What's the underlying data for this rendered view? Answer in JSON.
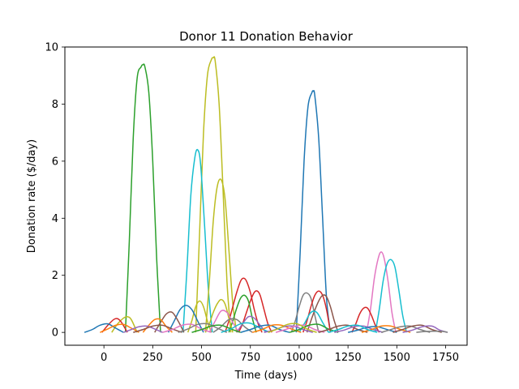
{
  "chart_data": {
    "type": "line",
    "title": "Donor 11 Donation Behavior",
    "xlabel": "Time (days)",
    "ylabel": "Donation rate ($/day)",
    "xlim": [
      -200,
      1860
    ],
    "ylim": [
      -0.45,
      10.0
    ],
    "x_ticks": [
      0,
      250,
      500,
      750,
      1000,
      1250,
      1500,
      1750
    ],
    "x_tick_labels": [
      "0",
      "250",
      "500",
      "750",
      "1000",
      "1250",
      "1500",
      "1750"
    ],
    "y_ticks": [
      0,
      2,
      4,
      6,
      8,
      10
    ],
    "y_tick_labels": [
      "0",
      "2",
      "4",
      "6",
      "8",
      "10"
    ],
    "grid": false,
    "legend": "none",
    "palette": [
      "#1f77b4",
      "#ff7f0e",
      "#2ca02c",
      "#d62728",
      "#9467bd",
      "#8c564b",
      "#e377c2",
      "#7f7f7f",
      "#bcbd22",
      "#17becf"
    ],
    "series": [
      {
        "color": "#2ca02c",
        "x": [
          110,
          130,
          150,
          170,
          190,
          200,
          210,
          230,
          250,
          270,
          290
        ],
        "y": [
          0,
          3.2,
          6.8,
          8.9,
          9.3,
          9.38,
          9.3,
          8.4,
          6.0,
          2.6,
          0
        ]
      },
      {
        "color": "#bcbd22",
        "x": [
          470,
          490,
          510,
          530,
          550,
          560,
          570,
          590,
          610,
          630,
          650
        ],
        "y": [
          0,
          3.5,
          7.0,
          9.0,
          9.55,
          9.62,
          9.5,
          8.0,
          5.0,
          1.8,
          0
        ]
      },
      {
        "color": "#1f77b4",
        "x": [
          985,
          1005,
          1025,
          1045,
          1065,
          1072,
          1080,
          1100,
          1120,
          1140,
          1160
        ],
        "y": [
          0,
          2.8,
          6.0,
          7.9,
          8.4,
          8.45,
          8.3,
          6.8,
          4.0,
          1.2,
          0
        ]
      },
      {
        "color": "#17becf",
        "x": [
          405,
          425,
          445,
          465,
          480,
          495,
          515,
          535,
          555
        ],
        "y": [
          0,
          2.2,
          4.8,
          6.1,
          6.4,
          5.9,
          3.8,
          1.5,
          0
        ]
      },
      {
        "color": "#bcbd22",
        "x": [
          520,
          540,
          560,
          580,
          600,
          620,
          640,
          660,
          680
        ],
        "y": [
          0,
          1.8,
          3.9,
          5.1,
          5.35,
          4.7,
          2.9,
          1.0,
          0
        ]
      },
      {
        "color": "#e377c2",
        "x": [
          1345,
          1365,
          1385,
          1405,
          1420,
          1435,
          1455,
          1475,
          1495
        ],
        "y": [
          0,
          0.8,
          1.9,
          2.6,
          2.82,
          2.6,
          1.8,
          0.7,
          0
        ]
      },
      {
        "color": "#17becf",
        "x": [
          1390,
          1410,
          1430,
          1450,
          1470,
          1490,
          1510,
          1530,
          1550
        ],
        "y": [
          0,
          0.8,
          1.8,
          2.4,
          2.55,
          2.3,
          1.5,
          0.6,
          0
        ]
      },
      {
        "color": "#d62728",
        "x": [
          620,
          640,
          660,
          680,
          700,
          715,
          730,
          750,
          770,
          790,
          810
        ],
        "y": [
          0,
          0.4,
          0.9,
          1.4,
          1.8,
          1.9,
          1.8,
          1.4,
          0.8,
          0.3,
          0
        ]
      },
      {
        "color": "#d62728",
        "x": [
          690,
          710,
          730,
          750,
          770,
          785,
          800,
          820,
          840,
          860
        ],
        "y": [
          0,
          0.3,
          0.7,
          1.1,
          1.4,
          1.45,
          1.3,
          0.8,
          0.3,
          0
        ]
      },
      {
        "color": "#7f7f7f",
        "x": [
          960,
          980,
          1000,
          1020,
          1040,
          1060,
          1080,
          1100
        ],
        "y": [
          0,
          0.4,
          0.9,
          1.3,
          1.38,
          1.2,
          0.6,
          0
        ]
      },
      {
        "color": "#d62728",
        "x": [
          1020,
          1040,
          1060,
          1080,
          1100,
          1120,
          1140,
          1160
        ],
        "y": [
          0,
          0.4,
          0.9,
          1.3,
          1.45,
          1.3,
          0.8,
          0
        ]
      },
      {
        "color": "#8c564b",
        "x": [
          1040,
          1070,
          1100,
          1120,
          1140,
          1160,
          1180,
          1200
        ],
        "y": [
          0,
          0.6,
          1.1,
          1.3,
          1.25,
          0.9,
          0.4,
          0
        ]
      },
      {
        "color": "#2ca02c",
        "x": [
          640,
          660,
          680,
          700,
          720,
          740,
          760,
          780
        ],
        "y": [
          0,
          0.4,
          0.85,
          1.2,
          1.3,
          1.1,
          0.5,
          0
        ]
      },
      {
        "color": "#bcbd22",
        "x": [
          520,
          540,
          560,
          580,
          600,
          620,
          640,
          660
        ],
        "y": [
          0,
          0.3,
          0.7,
          1.0,
          1.15,
          1.0,
          0.5,
          0
        ]
      },
      {
        "color": "#bcbd22",
        "x": [
          430,
          450,
          470,
          490,
          510,
          530,
          550
        ],
        "y": [
          0,
          0.4,
          0.9,
          1.1,
          0.9,
          0.4,
          0
        ]
      },
      {
        "color": "#d62728",
        "x": [
          1270,
          1290,
          1310,
          1330,
          1350,
          1370,
          1390,
          1410
        ],
        "y": [
          0,
          0.3,
          0.65,
          0.85,
          0.85,
          0.6,
          0.25,
          0
        ]
      },
      {
        "color": "#1f77b4",
        "x": [
          330,
          360,
          390,
          420,
          450,
          480,
          510
        ],
        "y": [
          0,
          0.4,
          0.8,
          0.95,
          0.8,
          0.4,
          0
        ]
      },
      {
        "color": "#e377c2",
        "x": [
          540,
          570,
          600,
          630,
          660,
          690
        ],
        "y": [
          0,
          0.4,
          0.75,
          0.7,
          0.35,
          0
        ]
      },
      {
        "color": "#17becf",
        "x": [
          1000,
          1030,
          1060,
          1090,
          1120,
          1150
        ],
        "y": [
          0,
          0.35,
          0.7,
          0.7,
          0.35,
          0
        ]
      },
      {
        "color": "#8c564b",
        "x": [
          260,
          290,
          320,
          350,
          380,
          410
        ],
        "y": [
          0,
          0.35,
          0.65,
          0.7,
          0.4,
          0
        ]
      },
      {
        "color": "#bcbd22",
        "x": [
          40,
          70,
          100,
          120,
          140,
          170
        ],
        "y": [
          0,
          0.3,
          0.5,
          0.55,
          0.45,
          0
        ]
      },
      {
        "color": "#d62728",
        "x": [
          -10,
          20,
          50,
          70,
          90,
          120
        ],
        "y": [
          0,
          0.25,
          0.45,
          0.48,
          0.35,
          0
        ]
      },
      {
        "color": "#ff7f0e",
        "x": [
          200,
          230,
          260,
          290,
          320,
          350
        ],
        "y": [
          0,
          0.25,
          0.45,
          0.45,
          0.2,
          0
        ]
      },
      {
        "color": "#9467bd",
        "x": [
          680,
          710,
          740,
          770,
          800,
          830
        ],
        "y": [
          0,
          0.3,
          0.55,
          0.5,
          0.25,
          0
        ]
      },
      {
        "color": "#7f7f7f",
        "x": [
          560,
          600,
          640,
          680,
          720,
          760
        ],
        "y": [
          0,
          0.2,
          0.45,
          0.45,
          0.2,
          0
        ]
      },
      {
        "color": "#1f77b4",
        "x": [
          -100,
          -60,
          -20,
          20,
          60,
          100
        ],
        "y": [
          0,
          0.1,
          0.25,
          0.3,
          0.15,
          0
        ]
      },
      {
        "color": "#ff7f0e",
        "x": [
          -20,
          20,
          60,
          100,
          140,
          180
        ],
        "y": [
          0,
          0.12,
          0.25,
          0.28,
          0.15,
          0
        ]
      },
      {
        "color": "#9467bd",
        "x": [
          100,
          140,
          180,
          220,
          260,
          300
        ],
        "y": [
          0,
          0.1,
          0.2,
          0.22,
          0.12,
          0
        ]
      },
      {
        "color": "#8c564b",
        "x": [
          150,
          200,
          250,
          300,
          350,
          400
        ],
        "y": [
          0,
          0.1,
          0.22,
          0.25,
          0.12,
          0
        ]
      },
      {
        "color": "#e377c2",
        "x": [
          300,
          350,
          400,
          450,
          500,
          550
        ],
        "y": [
          0,
          0.1,
          0.25,
          0.28,
          0.12,
          0
        ]
      },
      {
        "color": "#7f7f7f",
        "x": [
          380,
          430,
          480,
          530,
          580,
          630
        ],
        "y": [
          0,
          0.12,
          0.28,
          0.3,
          0.15,
          0
        ]
      },
      {
        "color": "#2ca02c",
        "x": [
          450,
          500,
          550,
          600,
          650,
          700
        ],
        "y": [
          0,
          0.1,
          0.22,
          0.25,
          0.12,
          0
        ]
      },
      {
        "color": "#17becf",
        "x": [
          600,
          650,
          700,
          750,
          800,
          850
        ],
        "y": [
          0,
          0.12,
          0.3,
          0.32,
          0.15,
          0
        ]
      },
      {
        "color": "#1f77b4",
        "x": [
          700,
          750,
          800,
          850,
          900,
          950
        ],
        "y": [
          0,
          0.1,
          0.22,
          0.25,
          0.1,
          0
        ]
      },
      {
        "color": "#ff7f0e",
        "x": [
          760,
          810,
          860,
          910,
          960,
          1010
        ],
        "y": [
          0,
          0.1,
          0.25,
          0.25,
          0.12,
          0
        ]
      },
      {
        "color": "#9467bd",
        "x": [
          820,
          870,
          920,
          970,
          1020,
          1070
        ],
        "y": [
          0,
          0.08,
          0.2,
          0.22,
          0.1,
          0
        ]
      },
      {
        "color": "#e377c2",
        "x": [
          880,
          930,
          980,
          1030,
          1080,
          1130
        ],
        "y": [
          0,
          0.1,
          0.22,
          0.25,
          0.1,
          0
        ]
      },
      {
        "color": "#2ca02c",
        "x": [
          950,
          1000,
          1050,
          1100,
          1150,
          1200
        ],
        "y": [
          0,
          0.1,
          0.25,
          0.28,
          0.12,
          0
        ]
      },
      {
        "color": "#8c564b",
        "x": [
          1100,
          1150,
          1200,
          1250,
          1300,
          1350
        ],
        "y": [
          0,
          0.1,
          0.22,
          0.25,
          0.1,
          0
        ]
      },
      {
        "color": "#9467bd",
        "x": [
          1180,
          1230,
          1280,
          1330,
          1380,
          1430
        ],
        "y": [
          0,
          0.08,
          0.2,
          0.22,
          0.1,
          0
        ]
      },
      {
        "color": "#1f77b4",
        "x": [
          1250,
          1300,
          1350,
          1400,
          1450,
          1500
        ],
        "y": [
          0,
          0.08,
          0.18,
          0.2,
          0.1,
          0
        ]
      },
      {
        "color": "#ff7f0e",
        "x": [
          1320,
          1370,
          1420,
          1470,
          1520,
          1570
        ],
        "y": [
          0,
          0.1,
          0.22,
          0.22,
          0.1,
          0
        ]
      },
      {
        "color": "#7f7f7f",
        "x": [
          1420,
          1470,
          1520,
          1570,
          1620,
          1670
        ],
        "y": [
          0,
          0.1,
          0.2,
          0.22,
          0.1,
          0
        ]
      },
      {
        "color": "#8c564b",
        "x": [
          1480,
          1530,
          1580,
          1630,
          1680,
          1730
        ],
        "y": [
          0,
          0.1,
          0.22,
          0.25,
          0.1,
          0
        ]
      },
      {
        "color": "#9467bd",
        "x": [
          1530,
          1580,
          1630,
          1680,
          1720,
          1760
        ],
        "y": [
          0,
          0.08,
          0.2,
          0.22,
          0.08,
          0
        ]
      },
      {
        "color": "#7f7f7f",
        "x": [
          1600,
          1640,
          1680,
          1720,
          1740,
          1760
        ],
        "y": [
          0,
          0.03,
          0.04,
          0.04,
          0.03,
          0.0
        ]
      },
      {
        "color": "#bcbd22",
        "x": [
          840,
          890,
          940,
          990,
          1040,
          1090
        ],
        "y": [
          0,
          0.12,
          0.28,
          0.3,
          0.12,
          0
        ]
      },
      {
        "color": "#17becf",
        "x": [
          1150,
          1200,
          1250,
          1300,
          1350,
          1400
        ],
        "y": [
          0,
          0.1,
          0.22,
          0.25,
          0.1,
          0
        ]
      }
    ]
  }
}
